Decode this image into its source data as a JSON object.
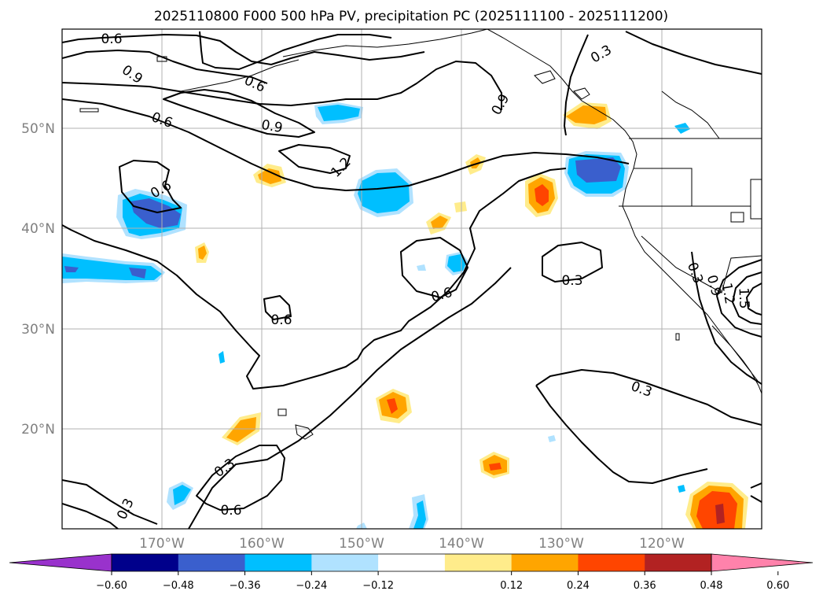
{
  "title": "2025110800 F000 500 hPa PV, precipitation PC (2025111100 - 2025111200)",
  "lat_labels": [
    {
      "value": 50,
      "text": "50°N"
    },
    {
      "value": 40,
      "text": "40°N"
    },
    {
      "value": 30,
      "text": "30°N"
    },
    {
      "value": 20,
      "text": "20°N"
    }
  ],
  "lon_labels": [
    {
      "value": -170,
      "text": "170°W"
    },
    {
      "value": -160,
      "text": "160°W"
    },
    {
      "value": -150,
      "text": "150°W"
    },
    {
      "value": -140,
      "text": "140°W"
    },
    {
      "value": -130,
      "text": "130°W"
    },
    {
      "value": -120,
      "text": "120°W"
    }
  ],
  "contour_labels": [
    "0.6",
    "0.9",
    "0.6",
    "0.6",
    "0.9",
    "1.2",
    "0.6",
    "0.9",
    "0.3",
    "0.6",
    "0.6",
    "0.3",
    "0.3",
    "0.3",
    "0.6",
    "0.3",
    "0.9",
    "1.2",
    "1.5"
  ],
  "colorbar": {
    "ticks": [
      "−0.60",
      "−0.48",
      "−0.36",
      "−0.24",
      "−0.12",
      "0.12",
      "0.24",
      "0.36",
      "0.48",
      "0.60"
    ],
    "colors": [
      "#9932cc",
      "#00008b",
      "#3a5fcd",
      "#00bfff",
      "#b0e2ff",
      "#ffffff",
      "#ffec8b",
      "#ffa500",
      "#ff4500",
      "#b22222",
      "#ff82ab"
    ]
  }
}
